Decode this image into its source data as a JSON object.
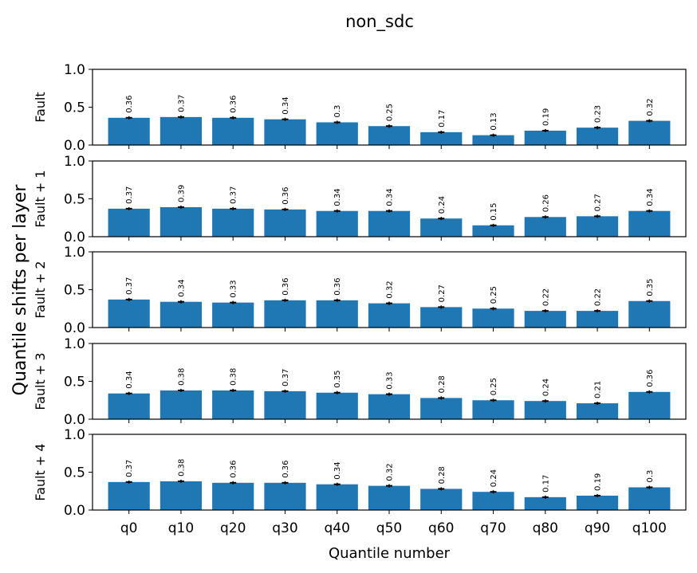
{
  "chart_data": {
    "type": "bar",
    "title": "non_sdc",
    "xlabel": "Quantile number",
    "ylabel": "Quantile shifts per layer",
    "categories": [
      "q0",
      "q10",
      "q20",
      "q30",
      "q40",
      "q50",
      "q60",
      "q70",
      "q80",
      "q90",
      "q100"
    ],
    "ylim": [
      0,
      1.0
    ],
    "yticks": [
      "0.0",
      "0.5",
      "1.0"
    ],
    "bar_color": "#1f77b4",
    "errorbar_color": "#000000",
    "grid": false,
    "panels": [
      {
        "ylabel": "Fault",
        "values": [
          0.36,
          0.37,
          0.36,
          0.34,
          0.3,
          0.25,
          0.17,
          0.13,
          0.19,
          0.23,
          0.32
        ],
        "labels": [
          "0.36",
          "0.37",
          "0.36",
          "0.34",
          "0.3",
          "0.25",
          "0.17",
          "0.13",
          "0.19",
          "0.23",
          "0.32"
        ]
      },
      {
        "ylabel": "Fault + 1",
        "values": [
          0.37,
          0.39,
          0.37,
          0.36,
          0.34,
          0.34,
          0.24,
          0.15,
          0.26,
          0.27,
          0.34
        ],
        "labels": [
          "0.37",
          "0.39",
          "0.37",
          "0.36",
          "0.34",
          "0.34",
          "0.24",
          "0.15",
          "0.26",
          "0.27",
          "0.34"
        ]
      },
      {
        "ylabel": "Fault + 2",
        "values": [
          0.37,
          0.34,
          0.33,
          0.36,
          0.36,
          0.32,
          0.27,
          0.25,
          0.22,
          0.22,
          0.35
        ],
        "labels": [
          "0.37",
          "0.34",
          "0.33",
          "0.36",
          "0.36",
          "0.32",
          "0.27",
          "0.25",
          "0.22",
          "0.22",
          "0.35"
        ]
      },
      {
        "ylabel": "Fault + 3",
        "values": [
          0.34,
          0.38,
          0.38,
          0.37,
          0.35,
          0.33,
          0.28,
          0.25,
          0.24,
          0.21,
          0.36
        ],
        "labels": [
          "0.34",
          "0.38",
          "0.38",
          "0.37",
          "0.35",
          "0.33",
          "0.28",
          "0.25",
          "0.24",
          "0.21",
          "0.36"
        ]
      },
      {
        "ylabel": "Fault + 4",
        "values": [
          0.37,
          0.38,
          0.36,
          0.36,
          0.34,
          0.32,
          0.28,
          0.24,
          0.17,
          0.19,
          0.3
        ],
        "labels": [
          "0.37",
          "0.38",
          "0.36",
          "0.36",
          "0.34",
          "0.32",
          "0.28",
          "0.24",
          "0.17",
          "0.19",
          "0.3"
        ]
      }
    ]
  }
}
